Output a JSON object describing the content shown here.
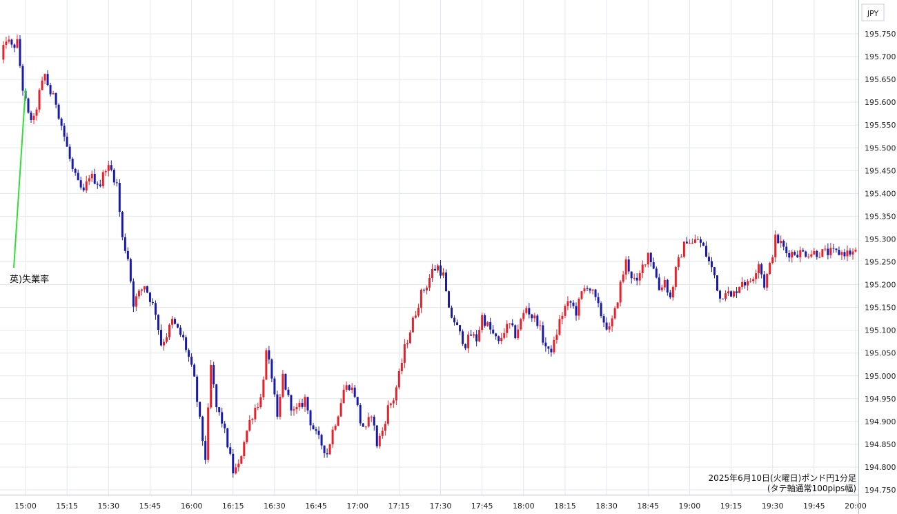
{
  "chart_data": {
    "type": "candlestick",
    "currency_label": "JPY",
    "caption_line1": "2025年6月10日(火曜日)ポンド円1分足",
    "caption_line2": "(タテ軸通常100pips幅)",
    "annotation": {
      "text": "英)失業率",
      "time": "15:00",
      "price": 195.63
    },
    "ylim": [
      194.735,
      195.775
    ],
    "y_ticks": [
      "195.750",
      "195.700",
      "195.650",
      "195.600",
      "195.550",
      "195.500",
      "195.450",
      "195.400",
      "195.350",
      "195.300",
      "195.250",
      "195.200",
      "195.150",
      "195.100",
      "195.050",
      "195.000",
      "194.950",
      "194.900",
      "194.850",
      "194.800",
      "194.750"
    ],
    "x_ticks": [
      "15:00",
      "15:15",
      "15:30",
      "15:45",
      "16:00",
      "16:15",
      "16:30",
      "16:45",
      "17:00",
      "17:15",
      "17:30",
      "17:45",
      "18:00",
      "18:15",
      "18:30",
      "18:45",
      "19:00",
      "19:15",
      "19:30",
      "19:45",
      "20:00"
    ],
    "x_start": "14:51",
    "x_end": "20:01",
    "up_color": "#e8202a",
    "down_color": "#1a1aa8",
    "grid": true,
    "close_path": [
      [
        0,
        195.69
      ],
      [
        2,
        195.74
      ],
      [
        4,
        195.72
      ],
      [
        6,
        195.73
      ],
      [
        8,
        195.63
      ],
      [
        10,
        195.57
      ],
      [
        12,
        195.56
      ],
      [
        14,
        195.62
      ],
      [
        16,
        195.66
      ],
      [
        18,
        195.62
      ],
      [
        20,
        195.6
      ],
      [
        22,
        195.55
      ],
      [
        24,
        195.5
      ],
      [
        26,
        195.45
      ],
      [
        28,
        195.42
      ],
      [
        30,
        195.4
      ],
      [
        32,
        195.44
      ],
      [
        34,
        195.43
      ],
      [
        36,
        195.42
      ],
      [
        38,
        195.46
      ],
      [
        40,
        195.45
      ],
      [
        42,
        195.42
      ],
      [
        44,
        195.3
      ],
      [
        46,
        195.26
      ],
      [
        48,
        195.16
      ],
      [
        50,
        195.18
      ],
      [
        52,
        195.2
      ],
      [
        54,
        195.17
      ],
      [
        56,
        195.14
      ],
      [
        58,
        195.07
      ],
      [
        60,
        195.09
      ],
      [
        62,
        195.12
      ],
      [
        64,
        195.1
      ],
      [
        66,
        195.08
      ],
      [
        68,
        195.04
      ],
      [
        70,
        194.99
      ],
      [
        72,
        194.9
      ],
      [
        74,
        194.82
      ],
      [
        76,
        195.02
      ],
      [
        78,
        194.93
      ],
      [
        80,
        194.9
      ],
      [
        82,
        194.85
      ],
      [
        84,
        194.79
      ],
      [
        86,
        194.8
      ],
      [
        88,
        194.86
      ],
      [
        90,
        194.9
      ],
      [
        92,
        194.93
      ],
      [
        94,
        194.95
      ],
      [
        96,
        195.05
      ],
      [
        98,
        195.0
      ],
      [
        100,
        194.9
      ],
      [
        102,
        195.0
      ],
      [
        104,
        194.95
      ],
      [
        106,
        194.92
      ],
      [
        108,
        194.93
      ],
      [
        110,
        194.95
      ],
      [
        112,
        194.9
      ],
      [
        114,
        194.87
      ],
      [
        116,
        194.85
      ],
      [
        118,
        194.83
      ],
      [
        120,
        194.88
      ],
      [
        122,
        194.92
      ],
      [
        124,
        194.97
      ],
      [
        126,
        194.98
      ],
      [
        128,
        194.96
      ],
      [
        130,
        194.9
      ],
      [
        132,
        194.88
      ],
      [
        134,
        194.92
      ],
      [
        136,
        194.85
      ],
      [
        138,
        194.88
      ],
      [
        140,
        194.93
      ],
      [
        142,
        194.95
      ],
      [
        144,
        195.0
      ],
      [
        146,
        195.06
      ],
      [
        148,
        195.1
      ],
      [
        150,
        195.14
      ],
      [
        152,
        195.18
      ],
      [
        154,
        195.2
      ],
      [
        156,
        195.23
      ],
      [
        158,
        195.24
      ],
      [
        160,
        195.22
      ],
      [
        162,
        195.14
      ],
      [
        164,
        195.12
      ],
      [
        166,
        195.09
      ],
      [
        168,
        195.07
      ],
      [
        170,
        195.09
      ],
      [
        172,
        195.08
      ],
      [
        174,
        195.13
      ],
      [
        176,
        195.11
      ],
      [
        178,
        195.09
      ],
      [
        180,
        195.07
      ],
      [
        182,
        195.1
      ],
      [
        184,
        195.11
      ],
      [
        186,
        195.09
      ],
      [
        188,
        195.12
      ],
      [
        190,
        195.15
      ],
      [
        192,
        195.13
      ],
      [
        194,
        195.12
      ],
      [
        196,
        195.08
      ],
      [
        198,
        195.05
      ],
      [
        200,
        195.07
      ],
      [
        202,
        195.12
      ],
      [
        204,
        195.15
      ],
      [
        206,
        195.16
      ],
      [
        208,
        195.14
      ],
      [
        210,
        195.18
      ],
      [
        212,
        195.2
      ],
      [
        214,
        195.18
      ],
      [
        216,
        195.15
      ],
      [
        218,
        195.12
      ],
      [
        220,
        195.1
      ],
      [
        222,
        195.14
      ],
      [
        224,
        195.2
      ],
      [
        226,
        195.25
      ],
      [
        228,
        195.22
      ],
      [
        230,
        195.2
      ],
      [
        232,
        195.24
      ],
      [
        234,
        195.27
      ],
      [
        236,
        195.24
      ],
      [
        238,
        195.19
      ],
      [
        240,
        195.21
      ],
      [
        242,
        195.17
      ],
      [
        244,
        195.23
      ],
      [
        246,
        195.27
      ],
      [
        248,
        195.3
      ],
      [
        250,
        195.29
      ],
      [
        252,
        195.3
      ],
      [
        254,
        195.28
      ],
      [
        256,
        195.25
      ],
      [
        258,
        195.22
      ],
      [
        260,
        195.17
      ],
      [
        262,
        195.19
      ],
      [
        264,
        195.17
      ],
      [
        266,
        195.19
      ],
      [
        268,
        195.21
      ],
      [
        270,
        195.2
      ],
      [
        272,
        195.22
      ],
      [
        274,
        195.25
      ],
      [
        276,
        195.2
      ],
      [
        278,
        195.24
      ],
      [
        280,
        195.3
      ],
      [
        282,
        195.29
      ],
      [
        284,
        195.27
      ]
    ]
  }
}
